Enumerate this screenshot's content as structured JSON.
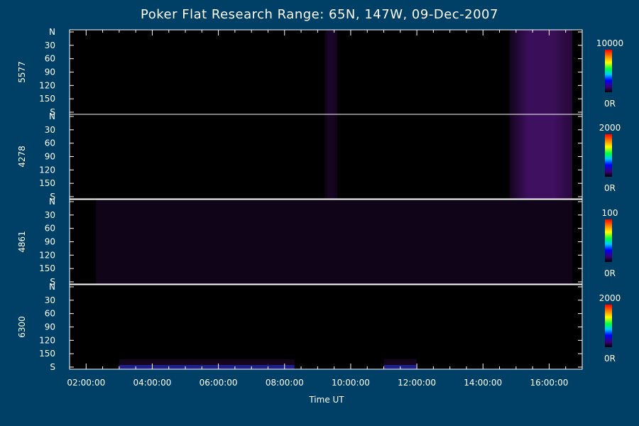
{
  "chart_data": {
    "type": "heatmap",
    "title": "Poker Flat Research Range: 65N, 147W, 09-Dec-2007",
    "xlabel": "Time UT",
    "x_ticks": [
      "02:00:00",
      "04:00:00",
      "06:00:00",
      "08:00:00",
      "10:00:00",
      "12:00:00",
      "14:00:00",
      "16:00:00"
    ],
    "xlim_hours_ut": [
      1.5,
      17.0
    ],
    "y_ticks": [
      "N",
      "30",
      "60",
      "90",
      "120",
      "150",
      "S"
    ],
    "panels": [
      {
        "name": "5577",
        "scale_max": "10000",
        "scale_min": "0R",
        "activity": [
          {
            "start": 9.2,
            "end": 9.6,
            "level": 0.25
          },
          {
            "start": 14.8,
            "end": 16.7,
            "level": 0.55
          }
        ]
      },
      {
        "name": "4278",
        "scale_max": "2000",
        "scale_min": "0R",
        "activity": [
          {
            "start": 9.2,
            "end": 9.6,
            "level": 0.2
          },
          {
            "start": 14.8,
            "end": 16.7,
            "level": 0.6
          }
        ]
      },
      {
        "name": "4861",
        "scale_max": "100",
        "scale_min": "0R",
        "activity": [
          {
            "start": 2.3,
            "end": 16.7,
            "level": 0.15
          }
        ]
      },
      {
        "name": "6300",
        "scale_max": "2000",
        "scale_min": "0R",
        "activity": [
          {
            "start": 3.0,
            "end": 8.3,
            "level": 0.35
          },
          {
            "start": 11.0,
            "end": 12.0,
            "level": 0.35
          }
        ]
      }
    ],
    "colors": {
      "background": "#003f66",
      "plot": "#000000",
      "axis": "#ffffff",
      "emission": "#6a1aa0"
    }
  }
}
